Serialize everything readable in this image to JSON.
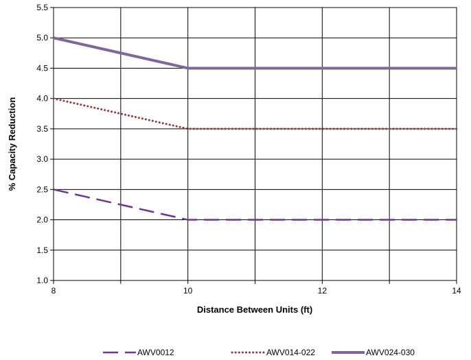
{
  "chart_data": {
    "type": "line",
    "xlabel": "Distance Between Units (ft)",
    "ylabel": "% Capacity Reduction",
    "xlim": [
      8,
      14
    ],
    "ylim": [
      1.0,
      5.5
    ],
    "x_ticks": [
      "8",
      "10",
      "12",
      "14"
    ],
    "x_tick_values": [
      8,
      10,
      12,
      14
    ],
    "x_grid": [
      8,
      9,
      10,
      11,
      12,
      13,
      14
    ],
    "y_ticks": [
      "1.0",
      "1.5",
      "2.0",
      "2.5",
      "3.0",
      "3.5",
      "4.0",
      "4.5",
      "5.0",
      "5.5"
    ],
    "y_tick_values": [
      1.0,
      1.5,
      2.0,
      2.5,
      3.0,
      3.5,
      4.0,
      4.5,
      5.0,
      5.5
    ],
    "grid": true,
    "legend_position": "bottom",
    "series": [
      {
        "name": "AWV0012",
        "x": [
          8,
          10,
          14
        ],
        "y": [
          2.5,
          2.0,
          2.0
        ],
        "color": "#7030A0",
        "style": "dashed"
      },
      {
        "name": "AWV014-022",
        "x": [
          8,
          10,
          14
        ],
        "y": [
          4.0,
          3.5,
          3.5
        ],
        "color": "#953735",
        "style": "dotted"
      },
      {
        "name": "AWV024-030",
        "x": [
          8,
          10,
          14
        ],
        "y": [
          5.0,
          4.5,
          4.5
        ],
        "color": "#8064A2",
        "style": "solid"
      }
    ]
  }
}
